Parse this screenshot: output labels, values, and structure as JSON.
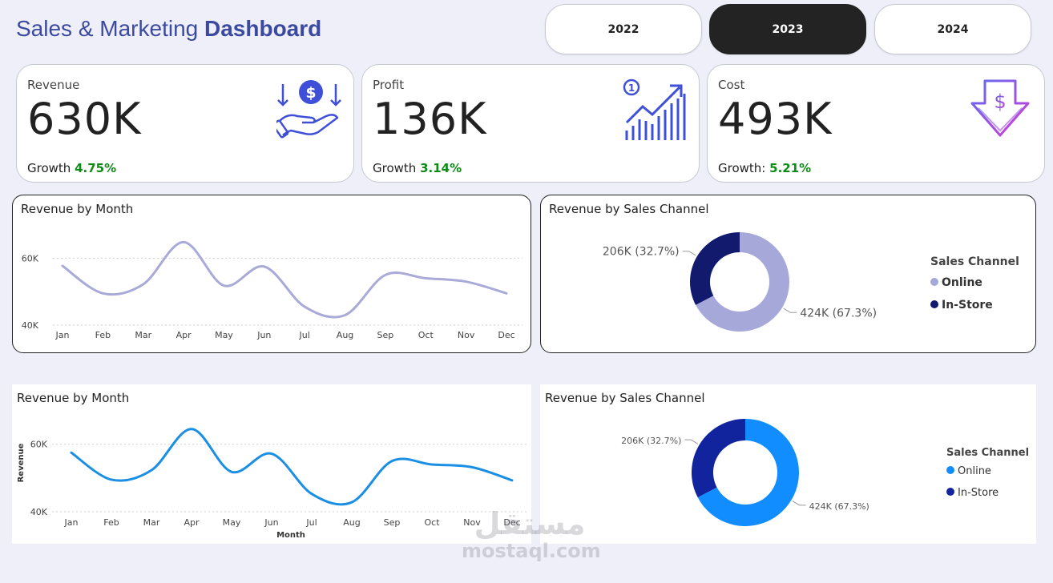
{
  "header": {
    "title_regular": "Sales & Marketing",
    "title_bold": "Dashboard"
  },
  "years": [
    {
      "label": "2022",
      "active": false
    },
    {
      "label": "2023",
      "active": true
    },
    {
      "label": "2024",
      "active": false
    }
  ],
  "kpis": [
    {
      "label": "Revenue",
      "value": "630K",
      "growth_label": "Growth",
      "growth_value": "4.75%",
      "icon": "money-hand-icon"
    },
    {
      "label": "Profit",
      "value": "136K",
      "growth_label": "Growth",
      "growth_value": "3.14%",
      "icon": "growth-chart-icon"
    },
    {
      "label": "Cost",
      "value": "493K",
      "growth_label": "Growth:",
      "growth_value": "5.21%",
      "icon": "cost-down-icon"
    }
  ],
  "colors": {
    "accent": "#3b4aa0",
    "growth": "#0e8a16",
    "line_top": "#a9aad8",
    "line_bottom": "#1a8fe3",
    "donut_top_online": "#a6a8da",
    "donut_top_instore": "#121a6e",
    "donut_bottom_online": "#118dff",
    "donut_bottom_instore": "#12239e"
  },
  "chart_data": [
    {
      "type": "line",
      "title": "Revenue by Month",
      "xlabel": "",
      "ylabel": "",
      "categories": [
        "Jan",
        "Feb",
        "Mar",
        "Apr",
        "May",
        "Jun",
        "Jul",
        "Aug",
        "Sep",
        "Oct",
        "Nov",
        "Dec"
      ],
      "values": [
        57.7,
        49.5,
        52.2,
        64.8,
        51.8,
        57.5,
        45.5,
        43.0,
        55.0,
        54.0,
        53.0,
        49.5
      ],
      "ylim": [
        40,
        68
      ],
      "yticks": [
        {
          "value": 40,
          "label": "40K"
        },
        {
          "value": 60,
          "label": "60K"
        }
      ],
      "grid": true
    },
    {
      "type": "pie",
      "title": "Revenue by Sales Channel",
      "legend_title": "Sales Channel",
      "legend_position": "right",
      "slices": [
        {
          "name": "Online",
          "value": 424,
          "label": "424K (67.3%)"
        },
        {
          "name": "In-Store",
          "value": 206,
          "label": "206K (32.7%)"
        }
      ]
    },
    {
      "type": "line",
      "title": "Revenue by Month",
      "xlabel": "Month",
      "ylabel": "Revenue",
      "categories": [
        "Jan",
        "Feb",
        "Mar",
        "Apr",
        "May",
        "Jun",
        "Jul",
        "Aug",
        "Sep",
        "Oct",
        "Nov",
        "Dec"
      ],
      "values": [
        57.5,
        49.5,
        52.3,
        64.5,
        51.8,
        57.2,
        45.3,
        42.8,
        55.0,
        54.0,
        53.2,
        49.3
      ],
      "ylim": [
        40,
        68
      ],
      "yticks": [
        {
          "value": 40,
          "label": "40K"
        },
        {
          "value": 60,
          "label": "60K"
        }
      ],
      "grid": true
    },
    {
      "type": "pie",
      "title": "Revenue by Sales Channel",
      "legend_title": "Sales Channel",
      "legend_position": "right",
      "slices": [
        {
          "name": "Online",
          "value": 424,
          "label": "424K (67.3%)"
        },
        {
          "name": "In-Store",
          "value": 206,
          "label": "206K (32.7%)"
        }
      ]
    }
  ],
  "watermark": {
    "arabic": "مستقل",
    "latin": "mostaql.com"
  }
}
